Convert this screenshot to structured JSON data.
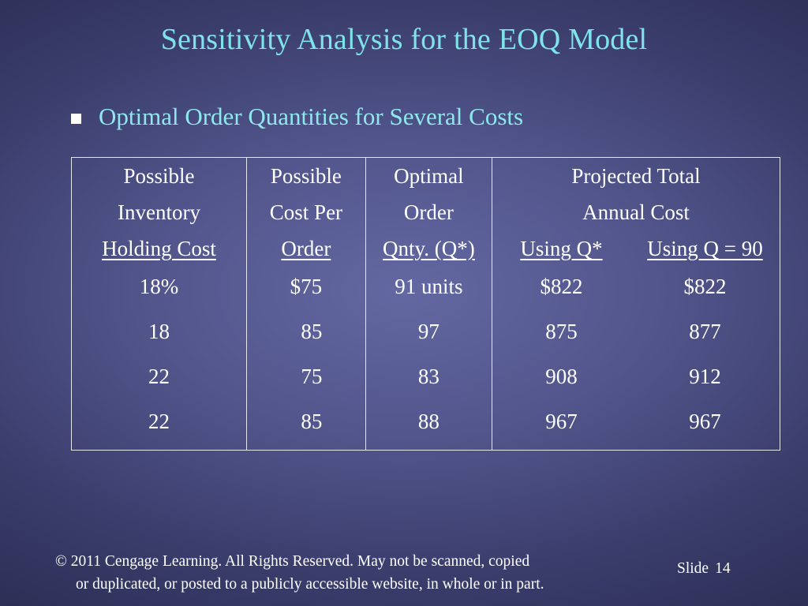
{
  "title": "Sensitivity Analysis for the EOQ Model",
  "bullet": "Optimal Order Quantities for Several Costs",
  "table": {
    "headers": {
      "col1": [
        "Possible",
        "Inventory",
        "Holding Cost"
      ],
      "col2": [
        "Possible",
        "Cost Per",
        "Order"
      ],
      "col3": [
        "Optimal",
        "Order",
        "Qnty. (Q*)"
      ],
      "col4_top": [
        "Projected Total",
        "Annual Cost"
      ],
      "col4_left": "Using Q*",
      "col4_right": "Using Q = 90"
    },
    "rows": [
      {
        "holding": "18%",
        "order_cost": "$75",
        "qstar": "91 units",
        "cost_qstar": "$822",
        "cost_q90": "$822"
      },
      {
        "holding": "18",
        "order_cost": "85",
        "qstar": "97",
        "cost_qstar": "875",
        "cost_q90": "877"
      },
      {
        "holding": "22",
        "order_cost": "75",
        "qstar": "83",
        "cost_qstar": "908",
        "cost_q90": "912"
      },
      {
        "holding": "22",
        "order_cost": "85",
        "qstar": "88",
        "cost_qstar": "967",
        "cost_q90": "967"
      }
    ]
  },
  "footer": {
    "line1": "© 2011  Cengage Learning.  All Rights Reserved.  May not be scanned, copied",
    "line2": "or duplicated, or posted to a publicly accessible website, in whole or in part.",
    "slide_label": "Slide",
    "slide_number": "14"
  },
  "colors": {
    "title": "#7fe3ea",
    "bullet_text": "#8ee8ee",
    "background_center": "#6468a2",
    "background_edge": "#2a2c52"
  }
}
